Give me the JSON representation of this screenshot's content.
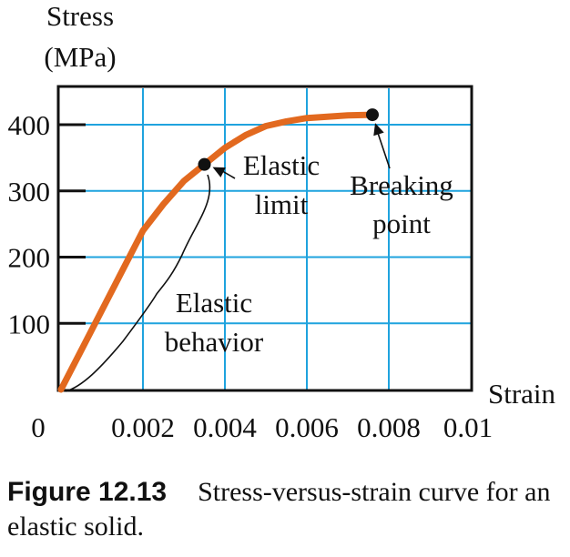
{
  "chart_data": {
    "type": "line",
    "ylabel_line1": "Stress",
    "ylabel_line2": "(MPa)",
    "xlabel": "Strain",
    "xlim": [
      0,
      0.01
    ],
    "ylim": [
      0,
      450
    ],
    "grid": true,
    "x_ticks": [
      "0",
      "0.002",
      "0.004",
      "0.006",
      "0.008",
      "0.01"
    ],
    "y_ticks": [
      "100",
      "200",
      "300",
      "400"
    ],
    "series": [
      {
        "points": [
          [
            0,
            0
          ],
          [
            0.0005,
            60
          ],
          [
            0.001,
            120
          ],
          [
            0.0015,
            180
          ],
          [
            0.002,
            240
          ],
          [
            0.0025,
            280
          ],
          [
            0.003,
            315
          ],
          [
            0.0035,
            340
          ],
          [
            0.004,
            365
          ],
          [
            0.0045,
            384
          ],
          [
            0.005,
            398
          ],
          [
            0.0055,
            405
          ],
          [
            0.006,
            410
          ],
          [
            0.0065,
            412
          ],
          [
            0.007,
            414
          ],
          [
            0.0076,
            415
          ]
        ]
      }
    ],
    "annotations": {
      "elastic_limit": {
        "x": 0.0035,
        "y": 340,
        "line1": "Elastic",
        "line2": "limit"
      },
      "breaking_point": {
        "x": 0.0076,
        "y": 415,
        "line1": "Breaking",
        "line2": "point"
      },
      "elastic_behavior": {
        "line1": "Elastic",
        "line2": "behavior"
      }
    },
    "colors": {
      "curve": "#e2691f",
      "grid": "#1fa3de",
      "axis": "#111111",
      "point": "#111111"
    }
  },
  "caption": {
    "label": "Figure 12.13",
    "text": "Stress-versus-strain curve for an elastic solid."
  }
}
